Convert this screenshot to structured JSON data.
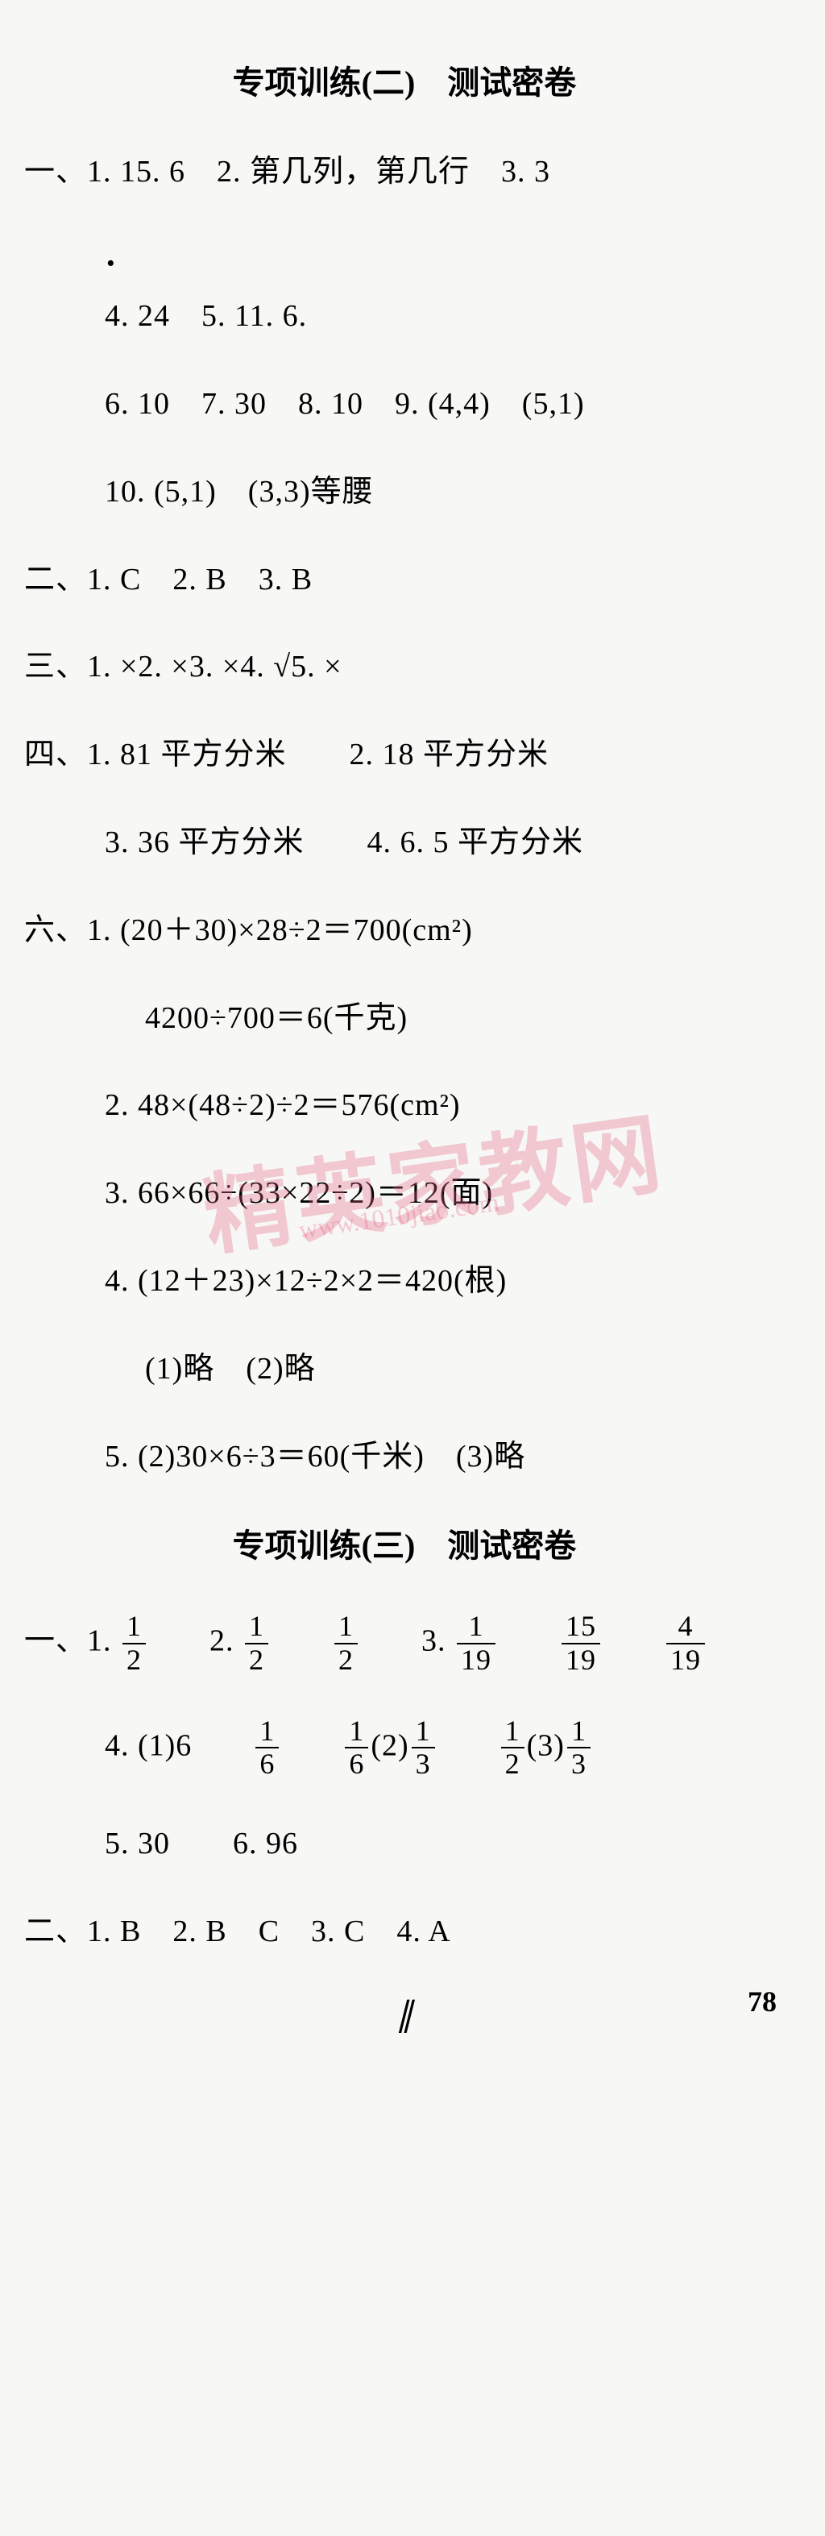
{
  "sectionTitle1": "专项训练(二)　测试密卷",
  "sectionTitle2": "专项训练(三)　测试密卷",
  "s1_l1": "一、1. 15. 6　2. 第几列，第几行　3. 3",
  "s1_l2": "4. 24　5. 11. 6.",
  "s1_l3": "6. 10　7. 30　8. 10　9. (4,4)　(5,1)",
  "s1_l4": "10. (5,1)　(3,3)等腰",
  "s1_l5": "二、1. C　2. B　3. B",
  "s1_l6": "三、1. ×2. ×3. ×4. √5. ×",
  "s1_l7": "四、1. 81 平方分米　　2. 18 平方分米",
  "s1_l8": "3. 36 平方分米　　4. 6. 5 平方分米",
  "s1_l9": "六、1. (20＋30)×28÷2＝700(cm²)",
  "s1_l10": "4200÷700＝6(千克)",
  "s1_l11": "2. 48×(48÷2)÷2＝576(cm²)",
  "s1_l12": "3. 66×66÷(33×22÷2)＝12(面)",
  "s1_l13": "4. (12＋23)×12÷2×2＝420(根)",
  "s1_l14": "(1)略　(2)略",
  "s1_l15": "5. (2)30×6÷3＝60(千米)　(3)略",
  "s3_t1": "一、1.",
  "s3_t2": "2.",
  "s3_t3": "3.",
  "s3_t4": "4. (1)6",
  "s3_t5": "(2)",
  "s3_t6": "(3)",
  "s3_l3": "5. 30　　6. 96",
  "s3_l4": "二、1. B　2. B　C　3. C　4. A",
  "f_1_2_n": "1",
  "f_1_2_d": "2",
  "f_1_19_n": "1",
  "f_1_19_d": "19",
  "f_15_19_n": "15",
  "f_15_19_d": "19",
  "f_4_19_n": "4",
  "f_4_19_d": "19",
  "f_1_6_n": "1",
  "f_1_6_d": "6",
  "f_1_3_n": "1",
  "f_1_3_d": "3",
  "pageNumber": "78",
  "bottomMark": "∥",
  "watermark": "精英家教网",
  "watermarkSub": "www.1010jiao.com"
}
